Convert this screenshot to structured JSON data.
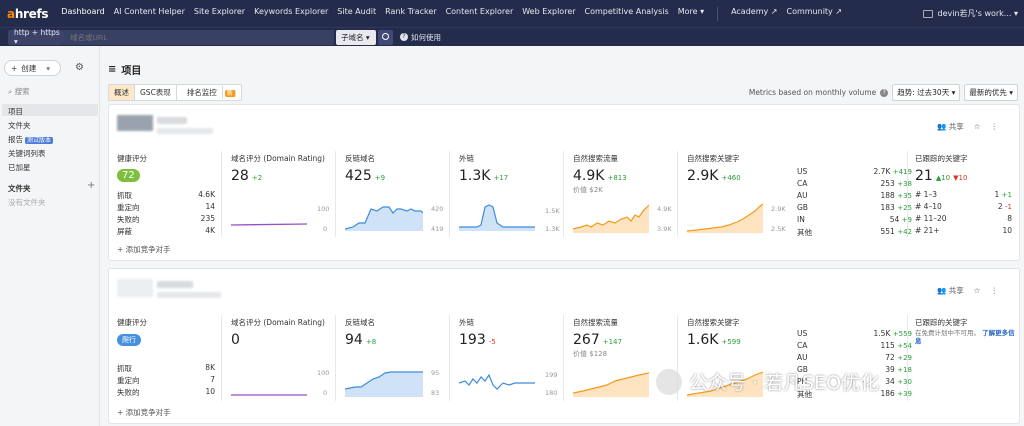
{
  "nav": {
    "logo_a": "a",
    "logo_rest": "hrefs",
    "items": [
      "Dashboard",
      "AI Content Helper",
      "Site Explorer",
      "Keywords Explorer",
      "Site Audit",
      "Rank Tracker",
      "Content Explorer",
      "Web Explorer",
      "Competitive Analysis",
      "More ▾"
    ],
    "items2": [
      "Academy ↗",
      "Community ↗"
    ],
    "user": "devin若凡's work... ▾"
  },
  "subbar": {
    "protocol": "http + https ▾",
    "url_placeholder": "域名或URL",
    "mode": "子域名 ▾",
    "help": "如何使用"
  },
  "sidebar": {
    "create": "创建",
    "search": "搜索",
    "items": [
      "项目",
      "文件夹",
      "报告",
      "关键词列表",
      "已加星"
    ],
    "beta": "测试版本",
    "folders_title": "文件夹",
    "no_folders": "没有文件夹"
  },
  "page": {
    "title": "项目",
    "tabs": [
      "概述",
      "GSC表现",
      "排名监控"
    ],
    "new_badge": "新",
    "metrics_note": "Metrics based on monthly volume",
    "trend": "趋势: 过去30天 ▾",
    "priority": "最新的优先 ▾"
  },
  "card_actions": {
    "share": "共享",
    "star": "☆",
    "more": "⋮"
  },
  "labels": {
    "health": "健康评分",
    "dr": "域名评分 (Domain Rating)",
    "refdomains": "反链域名",
    "backlinks": "外链",
    "traffic": "自然搜索流量",
    "keywords": "自然搜索关键字",
    "tracked": "已跟踪的关键字",
    "add_competitor": "添加竞争对手",
    "value_prefix": "价值"
  },
  "projects": [
    {
      "health": "72",
      "crawl": [
        [
          "抓取",
          "4.6K"
        ],
        [
          "重定向",
          "14"
        ],
        [
          "失败的",
          "235"
        ],
        [
          "屏蔽",
          "4K"
        ]
      ],
      "dr": "28",
      "dr_delta": "+2",
      "dr_axis": [
        "100",
        "0"
      ],
      "refdomains": "425",
      "refdomains_delta": "+9",
      "rd_axis": [
        "420",
        "419"
      ],
      "backlinks": "1.3K",
      "backlinks_delta": "+17",
      "bl_axis": [
        "1.5K",
        "1.3K"
      ],
      "traffic": "4.9K",
      "traffic_delta": "+813",
      "traffic_value": "$2K",
      "tr_axis": [
        "4.9K",
        "3.9K"
      ],
      "keywords": "2.9K",
      "keywords_delta": "+460",
      "kw_axis": [
        "2.9K",
        "2.5K"
      ],
      "countries": [
        [
          "US",
          "2.7K",
          "+419"
        ],
        [
          "CA",
          "253",
          "+38"
        ],
        [
          "AU",
          "188",
          "+35"
        ],
        [
          "GB",
          "183",
          "+25"
        ],
        [
          "IN",
          "54",
          "+9"
        ],
        [
          "其他",
          "551",
          "+42"
        ]
      ],
      "tracked": "21",
      "tracked_up": "▲10",
      "tracked_down": "▼10",
      "tracked_rows": [
        [
          "# 1–3",
          "1",
          "+1"
        ],
        [
          "# 4–10",
          "2",
          "-1"
        ],
        [
          "# 11–20",
          "8",
          ""
        ],
        [
          "# 21+",
          "10",
          ""
        ]
      ]
    },
    {
      "status": "爬行",
      "crawl": [
        [
          "抓取",
          "8K"
        ],
        [
          "重定向",
          "7"
        ],
        [
          "失败的",
          "10"
        ]
      ],
      "dr": "0",
      "dr_axis": [
        "100",
        "0"
      ],
      "refdomains": "94",
      "refdomains_delta": "+8",
      "rd_axis": [
        "95",
        "83"
      ],
      "backlinks": "193",
      "backlinks_delta": "-5",
      "bl_axis": [
        "199",
        "180"
      ],
      "traffic": "267",
      "traffic_delta": "+147",
      "traffic_value": "$128",
      "tr_axis": [
        "",
        ""
      ],
      "keywords": "1.6K",
      "keywords_delta": "+599",
      "countries": [
        [
          "US",
          "1.5K",
          "+559"
        ],
        [
          "CA",
          "115",
          "+54"
        ],
        [
          "AU",
          "72",
          "+29"
        ],
        [
          "GB",
          "39",
          "+18"
        ],
        [
          "PH",
          "34",
          "+30"
        ],
        [
          "其他",
          "186",
          "+39"
        ]
      ],
      "note": "在免费计划中不可用。",
      "note_link": "了解更多信息"
    }
  ],
  "watermark": "公众号 · 若凡SEO优化",
  "colors": {
    "nav_bg": "#232c4b",
    "accent": "#ff8800",
    "health": "#7fbf3f",
    "crawl": "#4690e0",
    "dr_line": "#9b4fc4",
    "rd_line": "#3e8bdc",
    "traffic_line": "#f39a1e",
    "up": "#2a9d3c",
    "down": "#d0382b"
  }
}
